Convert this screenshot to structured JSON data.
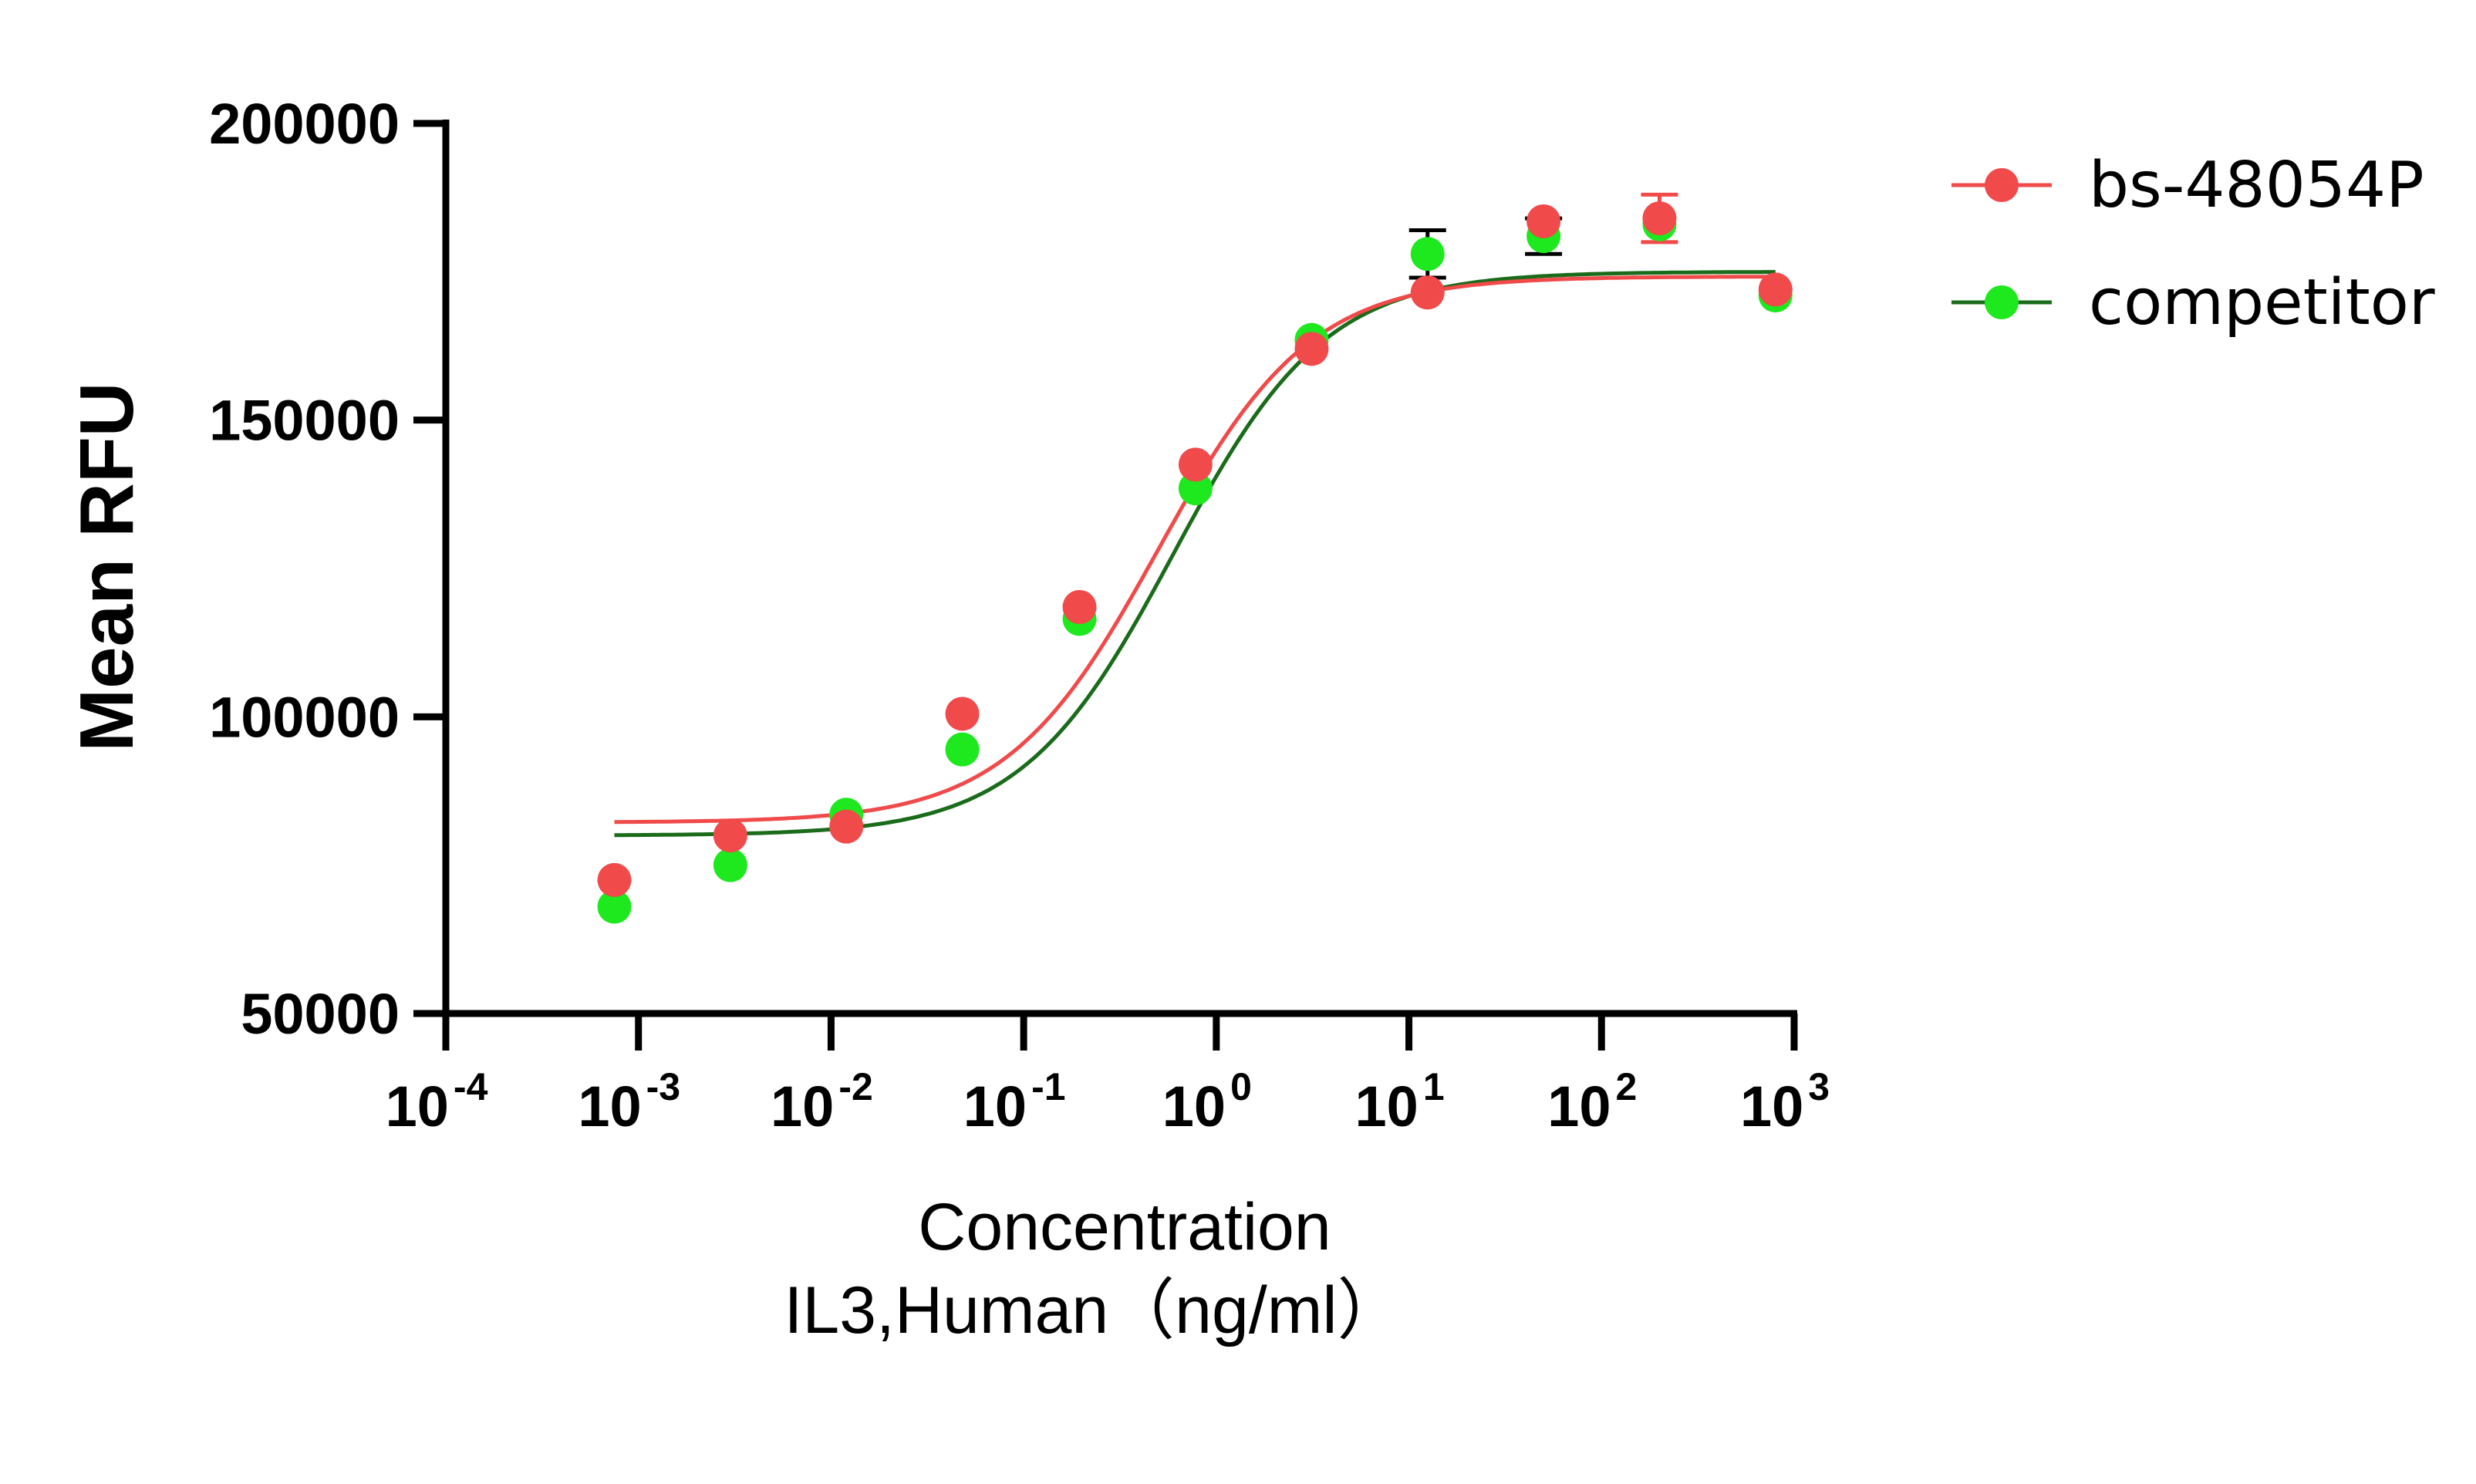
{
  "chart_data": {
    "type": "scatter",
    "xlabel": "Concentration",
    "xlabel_line2": "IL3,Human（ng/ml）",
    "ylabel": "Mean RFU",
    "xscale": "log",
    "xlim": [
      0.0001,
      1000
    ],
    "ylim": [
      50000,
      200000
    ],
    "x_ticks": [
      0.0001,
      0.001,
      0.01,
      0.1,
      1,
      10,
      100,
      1000
    ],
    "x_tick_labels": [
      {
        "base": "10",
        "exp": "-4"
      },
      {
        "base": "10",
        "exp": "-3"
      },
      {
        "base": "10",
        "exp": "-2"
      },
      {
        "base": "10",
        "exp": "-1"
      },
      {
        "base": "10",
        "exp": "0"
      },
      {
        "base": "10",
        "exp": "1"
      },
      {
        "base": "10",
        "exp": "2"
      },
      {
        "base": "10",
        "exp": "3"
      }
    ],
    "y_ticks": [
      50000,
      100000,
      150000,
      200000
    ],
    "y_tick_labels": [
      "50000",
      "100000",
      "150000",
      "200000"
    ],
    "legend_position": "top-right",
    "series": [
      {
        "name": "bs-48054P",
        "color": "#f04a4a",
        "x": [
          0.00075,
          0.003,
          0.012,
          0.048,
          0.195,
          0.78,
          3.125,
          12.5,
          50,
          200,
          800
        ],
        "y": [
          72500,
          80000,
          81500,
          100500,
          118500,
          142500,
          162000,
          171500,
          183500,
          184000,
          172000
        ],
        "error": [
          0,
          0,
          0,
          0,
          0,
          0,
          0,
          0,
          0,
          4000,
          0
        ],
        "fit": {
          "bottom": 82200,
          "top": 174200,
          "ec50": 0.5,
          "hill": 1.1
        }
      },
      {
        "name": "competitor",
        "color": "#1ee81e",
        "curve_color": "#1a6b1a",
        "x": [
          0.00075,
          0.003,
          0.012,
          0.048,
          0.195,
          0.78,
          3.125,
          12.5,
          50,
          200,
          800
        ],
        "y": [
          68000,
          75000,
          83500,
          94500,
          116500,
          138500,
          163500,
          178000,
          181000,
          183000,
          171000
        ],
        "error": [
          0,
          0,
          0,
          0,
          0,
          0,
          0,
          4000,
          3000,
          0,
          0
        ],
        "fit": {
          "bottom": 80000,
          "top": 175000,
          "ec50": 0.6,
          "hill": 1.1
        }
      }
    ]
  }
}
